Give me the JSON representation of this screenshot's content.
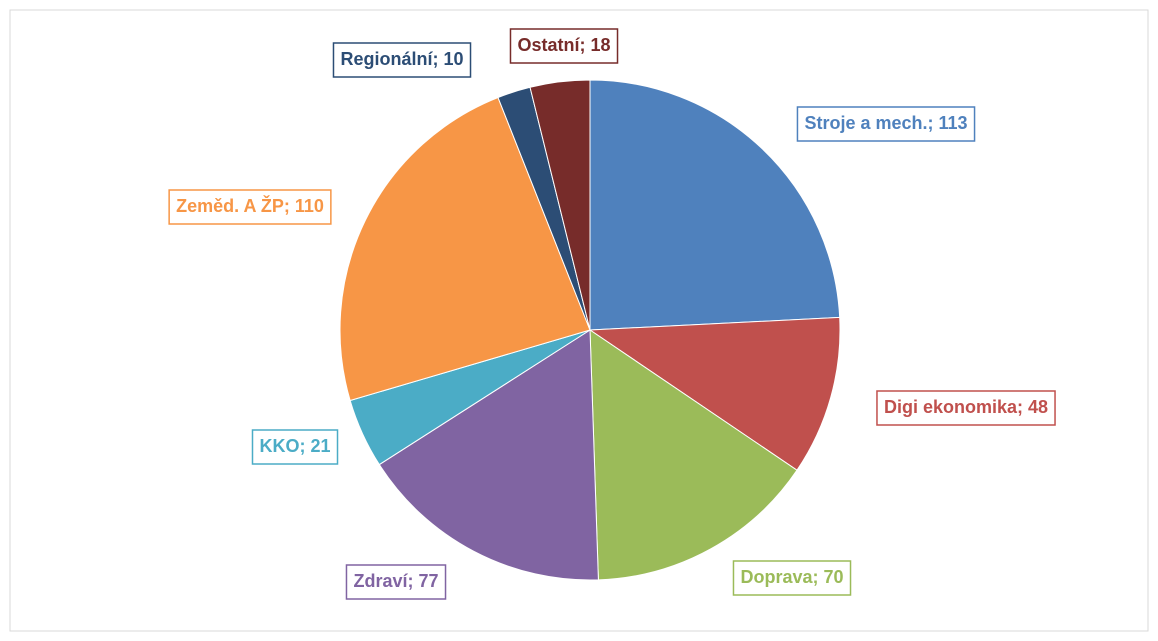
{
  "chart_data": {
    "type": "pie",
    "values": [
      113,
      48,
      70,
      77,
      21,
      110,
      10,
      18
    ],
    "value_labels": [
      "Stroje a mech.; 113",
      "Digi ekonomika; 48",
      "Doprava; 70",
      "Zdraví; 77",
      "KKO; 21",
      "Zeměd. A ŽP; 110",
      "Regionální; 10",
      "Ostatní; 18"
    ],
    "colors": [
      "#4f81bd",
      "#c0504d",
      "#9bbb59",
      "#8064a2",
      "#4bacc6",
      "#f79646",
      "#2c4d75",
      "#772c2a"
    ]
  }
}
